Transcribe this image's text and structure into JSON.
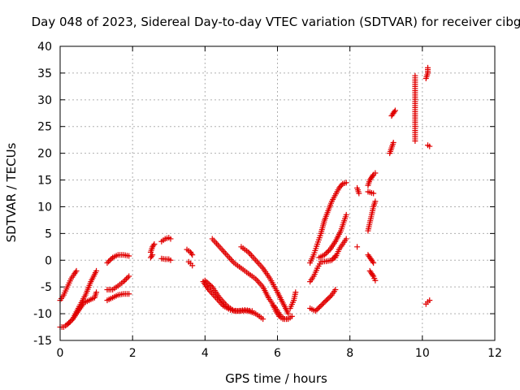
{
  "chart_data": {
    "type": "scatter",
    "title": "Day 048 of 2023, Sidereal Day-to-day VTEC variation (SDTVAR) for receiver cibg",
    "xlabel": "GPS time / hours",
    "ylabel": "SDTVAR / TECUs",
    "xlim": [
      0,
      12
    ],
    "ylim": [
      -15,
      40
    ],
    "xticks": [
      "0",
      "2",
      "4",
      "6",
      "8",
      "10",
      "12"
    ],
    "xtick_values": [
      0,
      2,
      4,
      6,
      8,
      10,
      12
    ],
    "yticks": [
      "-15",
      "-10",
      "-5",
      "0",
      "5",
      "10",
      "15",
      "20",
      "25",
      "30",
      "35",
      "40"
    ],
    "ytick_values": [
      -15,
      -10,
      -5,
      0,
      5,
      10,
      15,
      20,
      25,
      30,
      35,
      40
    ],
    "grid": true,
    "marker": "plus",
    "marker_color": "#e00000",
    "tracks": [
      {
        "name": "track-a",
        "x": [
          0.0,
          0.1,
          0.2,
          0.3,
          0.4,
          0.45
        ],
        "y": [
          -7.5,
          -6.5,
          -5,
          -3.5,
          -2.5,
          -2
        ]
      },
      {
        "name": "track-b",
        "x": [
          0.0,
          0.1,
          0.2,
          0.35,
          0.5,
          0.7,
          0.85,
          1.0
        ],
        "y": [
          -12.5,
          -12.5,
          -12,
          -11,
          -9,
          -6.5,
          -4,
          -2
        ]
      },
      {
        "name": "track-c",
        "x": [
          0.2,
          0.35,
          0.5,
          0.65,
          0.8,
          0.95,
          1.0
        ],
        "y": [
          -12,
          -11,
          -9.5,
          -8,
          -7.5,
          -7,
          -6
        ]
      },
      {
        "name": "track-d",
        "x": [
          1.3,
          1.45,
          1.6,
          1.75,
          1.9
        ],
        "y": [
          -0.5,
          0.5,
          1,
          1,
          0.8
        ]
      },
      {
        "name": "track-e",
        "x": [
          1.3,
          1.45,
          1.6,
          1.75,
          1.9
        ],
        "y": [
          -5.5,
          -5.5,
          -4.8,
          -4,
          -3
        ]
      },
      {
        "name": "track-f",
        "x": [
          1.3,
          1.45,
          1.6,
          1.75,
          1.9
        ],
        "y": [
          -7.5,
          -7,
          -6.5,
          -6.3,
          -6.3
        ]
      },
      {
        "name": "track-g",
        "x": [
          2.5,
          2.55,
          2.6
        ],
        "y": [
          1.5,
          2.5,
          3
        ]
      },
      {
        "name": "track-h",
        "x": [
          2.5,
          2.55
        ],
        "y": [
          0.5,
          1
        ]
      },
      {
        "name": "track-i",
        "x": [
          2.8,
          2.9,
          3.0,
          3.05
        ],
        "y": [
          3.5,
          4,
          4.2,
          4
        ]
      },
      {
        "name": "track-j",
        "x": [
          2.8,
          2.9,
          3.0,
          3.05
        ],
        "y": [
          0.3,
          0.2,
          0.2,
          0
        ]
      },
      {
        "name": "track-k",
        "x": [
          3.5,
          3.6,
          3.65
        ],
        "y": [
          2,
          1.5,
          1
        ]
      },
      {
        "name": "track-l",
        "x": [
          3.55,
          3.6,
          3.65
        ],
        "y": [
          -0.3,
          -0.6,
          -1
        ]
      },
      {
        "name": "track-m",
        "x": [
          4.2,
          4.4,
          4.6,
          4.8,
          5.0,
          5.2,
          5.4,
          5.6,
          5.75,
          5.85,
          5.95,
          6.05,
          6.15,
          6.25
        ],
        "y": [
          4,
          2.5,
          1,
          -0.5,
          -1.5,
          -2.5,
          -3.5,
          -5,
          -7,
          -8,
          -9.5,
          -10.5,
          -11,
          -11
        ]
      },
      {
        "name": "track-n",
        "x": [
          4.0,
          4.2,
          4.4,
          4.6,
          4.8,
          5.0,
          5.2,
          5.4,
          5.6
        ],
        "y": [
          -3.8,
          -5,
          -7,
          -8.5,
          -9.5,
          -9.5,
          -9.5,
          -10,
          -11
        ]
      },
      {
        "name": "track-o",
        "x": [
          3.95,
          4.1,
          4.3,
          4.5,
          4.7,
          4.9,
          5.1,
          5.3
        ],
        "y": [
          -4,
          -5.5,
          -7,
          -8.5,
          -9.3,
          -9.5,
          -9.3,
          -9.5
        ]
      },
      {
        "name": "track-p",
        "x": [
          5.0,
          5.2,
          5.4,
          5.6,
          5.8,
          6.0,
          6.15,
          6.3
        ],
        "y": [
          2.5,
          1.5,
          0,
          -1.5,
          -3.5,
          -6,
          -8,
          -10
        ]
      },
      {
        "name": "track-q",
        "x": [
          5.9,
          6.0,
          6.1,
          6.2,
          6.3,
          6.4
        ],
        "y": [
          -8.5,
          -9.5,
          -10.5,
          -11,
          -11,
          -10.5
        ]
      },
      {
        "name": "track-r",
        "x": [
          6.35,
          6.45,
          6.5
        ],
        "y": [
          -9,
          -7.5,
          -6
        ]
      },
      {
        "name": "track-s",
        "x": [
          6.9,
          7.0,
          7.1,
          7.2,
          7.3,
          7.5,
          7.7,
          7.8,
          7.9
        ],
        "y": [
          -0.5,
          1,
          3,
          5,
          7.5,
          11,
          13.5,
          14.3,
          14.5
        ]
      },
      {
        "name": "track-t",
        "x": [
          6.9,
          7.0,
          7.1,
          7.2,
          7.35,
          7.5,
          7.6
        ],
        "y": [
          -4,
          -3,
          -1.5,
          -0.3,
          -0.2,
          0,
          0.8
        ]
      },
      {
        "name": "track-u",
        "x": [
          7.15,
          7.3,
          7.45,
          7.6,
          7.75,
          7.9
        ],
        "y": [
          0.5,
          1,
          2,
          3.5,
          5.5,
          8.5
        ]
      },
      {
        "name": "track-v",
        "x": [
          6.9,
          7.05,
          7.2,
          7.35,
          7.5,
          7.6
        ],
        "y": [
          -9,
          -9.5,
          -8.5,
          -7.5,
          -6.5,
          -5.5
        ]
      },
      {
        "name": "track-w",
        "x": [
          7.6,
          7.7,
          7.8,
          7.9
        ],
        "y": [
          0.5,
          2,
          3,
          4
        ]
      },
      {
        "name": "track-x",
        "x": [
          8.2,
          8.25
        ],
        "y": [
          13.5,
          12.5
        ]
      },
      {
        "name": "track-y",
        "x": [
          8.2
        ],
        "y": [
          2.5
        ]
      },
      {
        "name": "track-z",
        "x": [
          8.5,
          8.55,
          8.6,
          8.65,
          8.7
        ],
        "y": [
          14,
          15,
          15.5,
          16,
          16.3
        ]
      },
      {
        "name": "track-aa",
        "x": [
          8.5,
          8.55,
          8.65
        ],
        "y": [
          12.8,
          12.7,
          12.5
        ]
      },
      {
        "name": "track-ab",
        "x": [
          8.5,
          8.55,
          8.6,
          8.65,
          8.7
        ],
        "y": [
          5.5,
          7,
          8.5,
          10,
          11
        ]
      },
      {
        "name": "track-ac",
        "x": [
          8.5,
          8.55,
          8.6,
          8.65
        ],
        "y": [
          1,
          0.5,
          0,
          -0.5
        ]
      },
      {
        "name": "track-ad",
        "x": [
          8.55,
          8.6,
          8.65,
          8.7
        ],
        "y": [
          -2,
          -2.5,
          -3,
          -3.8
        ]
      },
      {
        "name": "track-ae",
        "x": [
          9.1,
          9.15,
          9.2
        ],
        "y": [
          20,
          21,
          22
        ]
      },
      {
        "name": "track-af",
        "x": [
          9.15,
          9.2,
          9.25
        ],
        "y": [
          27,
          27.5,
          28
        ]
      },
      {
        "name": "track-ag",
        "x": [
          9.8,
          9.8,
          9.8
        ],
        "y": [
          34.5,
          30.5,
          22.3
        ]
      },
      {
        "name": "track-ah",
        "x": [
          10.1,
          10.15,
          10.15
        ],
        "y": [
          34,
          35,
          36
        ]
      },
      {
        "name": "track-ai",
        "x": [
          10.15,
          10.2
        ],
        "y": [
          21.5,
          21.3
        ]
      },
      {
        "name": "track-aj",
        "x": [
          10.1,
          10.15,
          10.2
        ],
        "y": [
          -8.2,
          -7.8,
          -7.5
        ]
      }
    ]
  }
}
